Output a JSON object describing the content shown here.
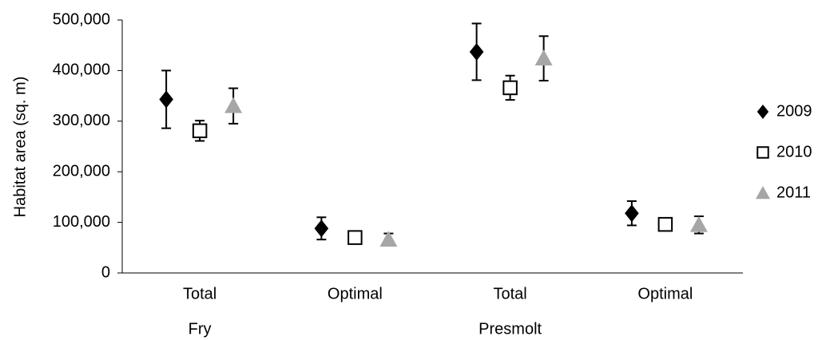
{
  "chart_data": {
    "type": "scatter",
    "y_label": "Habitat area (sq. m)",
    "categories": [
      "Total",
      "Optimal",
      "Total",
      "Optimal"
    ],
    "groups": [
      "Fry",
      "Presmolt"
    ],
    "ylim": [
      0,
      500000
    ],
    "yticks": [
      0,
      {
        "value": 100000,
        "label": "100,000"
      },
      {
        "value": 200000,
        "label": "200,000"
      },
      {
        "value": 300000,
        "label": "300,000"
      },
      {
        "value": 400000,
        "label": "400,000"
      },
      {
        "value": 500000,
        "label": "500,000"
      }
    ],
    "grid": false,
    "legend": "right",
    "series": [
      {
        "name": "2009",
        "color": "#000000",
        "marker": "diamond",
        "values": [
          343000,
          88000,
          437000,
          118000
        ],
        "errors": [
          57000,
          22000,
          56000,
          24000
        ]
      },
      {
        "name": "2010",
        "color": "#000000",
        "marker": "square-open",
        "values": [
          281000,
          70000,
          366000,
          96000
        ],
        "errors": [
          20000,
          3000,
          24000,
          12000
        ]
      },
      {
        "name": "2011",
        "color": "#a6a6a6",
        "marker": "triangle",
        "values": [
          330000,
          66000,
          424000,
          95000
        ],
        "errors": [
          35000,
          12000,
          44000,
          17000
        ]
      }
    ]
  }
}
